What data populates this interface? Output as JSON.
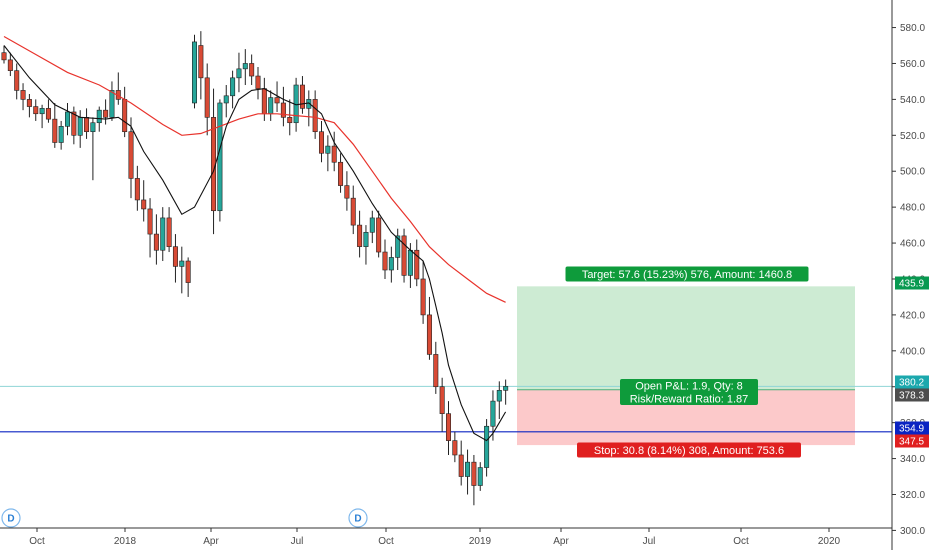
{
  "chart_data": {
    "type": "candlestick",
    "y_axis": {
      "range": [
        298,
        592
      ],
      "ticks": [
        "580.0",
        "560.0",
        "540.0",
        "520.0",
        "500.0",
        "480.0",
        "460.0",
        "440.0",
        "420.0",
        "400.0",
        "380.0",
        "360.0",
        "340.0",
        "320.0",
        "300.0"
      ]
    },
    "x_axis": {
      "ticks": [
        "Oct",
        "2018",
        "Apr",
        "Jul",
        "Oct",
        "2019",
        "Apr",
        "Jul",
        "Oct",
        "2020"
      ]
    },
    "candles": [
      [
        566,
        570,
        560,
        562
      ],
      [
        562,
        566,
        553,
        556
      ],
      [
        556,
        560,
        540,
        545
      ],
      [
        545,
        549,
        534,
        540
      ],
      [
        540,
        543,
        530,
        536
      ],
      [
        536,
        540,
        528,
        532
      ],
      [
        532,
        537,
        524,
        535
      ],
      [
        535,
        540,
        527,
        529
      ],
      [
        529,
        538,
        513,
        516
      ],
      [
        516,
        528,
        512,
        525
      ],
      [
        525,
        538,
        520,
        533
      ],
      [
        533,
        536,
        515,
        520
      ],
      [
        520,
        534,
        513,
        530
      ],
      [
        530,
        535,
        518,
        522
      ],
      [
        522,
        530,
        495,
        527
      ],
      [
        527,
        536,
        522,
        534
      ],
      [
        534,
        540,
        526,
        530
      ],
      [
        530,
        550,
        528,
        545
      ],
      [
        545,
        555,
        537,
        540
      ],
      [
        540,
        547,
        519,
        522
      ],
      [
        522,
        530,
        485,
        496
      ],
      [
        496,
        503,
        478,
        484
      ],
      [
        484,
        495,
        472,
        479
      ],
      [
        479,
        485,
        452,
        465
      ],
      [
        465,
        476,
        448,
        456
      ],
      [
        456,
        480,
        450,
        474
      ],
      [
        474,
        480,
        455,
        458
      ],
      [
        458,
        465,
        438,
        447
      ],
      [
        447,
        458,
        432,
        450
      ],
      [
        450,
        452,
        430,
        438
      ],
      [
        538,
        576,
        535,
        572
      ],
      [
        570,
        578,
        540,
        552
      ],
      [
        552,
        560,
        520,
        530
      ],
      [
        530,
        546,
        465,
        478
      ],
      [
        478,
        540,
        472,
        538
      ],
      [
        538,
        548,
        530,
        542
      ],
      [
        542,
        556,
        535,
        552
      ],
      [
        552,
        566,
        544,
        557
      ],
      [
        557,
        568,
        548,
        560
      ],
      [
        560,
        565,
        548,
        553
      ],
      [
        553,
        558,
        540,
        546
      ],
      [
        546,
        552,
        528,
        532
      ],
      [
        532,
        545,
        528,
        541
      ],
      [
        541,
        550,
        533,
        538
      ],
      [
        538,
        547,
        525,
        530
      ],
      [
        530,
        540,
        520,
        527
      ],
      [
        527,
        552,
        522,
        548
      ],
      [
        548,
        553,
        532,
        535
      ],
      [
        535,
        545,
        525,
        540
      ],
      [
        540,
        545,
        518,
        522
      ],
      [
        522,
        528,
        505,
        510
      ],
      [
        510,
        520,
        500,
        514
      ],
      [
        514,
        522,
        500,
        505
      ],
      [
        505,
        510,
        488,
        492
      ],
      [
        492,
        500,
        478,
        485
      ],
      [
        485,
        492,
        465,
        470
      ],
      [
        470,
        478,
        452,
        458
      ],
      [
        458,
        470,
        448,
        466
      ],
      [
        466,
        478,
        460,
        474
      ],
      [
        474,
        478,
        452,
        455
      ],
      [
        455,
        462,
        440,
        445
      ],
      [
        445,
        458,
        438,
        452
      ],
      [
        452,
        468,
        445,
        464
      ],
      [
        464,
        468,
        438,
        442
      ],
      [
        442,
        460,
        435,
        456
      ],
      [
        456,
        462,
        436,
        440
      ],
      [
        440,
        450,
        415,
        420
      ],
      [
        420,
        430,
        395,
        398
      ],
      [
        398,
        405,
        376,
        380
      ],
      [
        380,
        385,
        355,
        365
      ],
      [
        365,
        372,
        342,
        350
      ],
      [
        350,
        355,
        338,
        342
      ],
      [
        342,
        350,
        325,
        330
      ],
      [
        330,
        345,
        320,
        338
      ],
      [
        338,
        342,
        314,
        325
      ],
      [
        325,
        338,
        322,
        335
      ],
      [
        335,
        362,
        330,
        358
      ],
      [
        358,
        378,
        350,
        372
      ],
      [
        372,
        383,
        362,
        378
      ],
      [
        378,
        384,
        370,
        380.2
      ]
    ],
    "sma_short": [
      [
        0,
        570
      ],
      [
        4,
        552
      ],
      [
        8,
        537
      ],
      [
        12,
        530
      ],
      [
        16,
        529
      ],
      [
        18,
        530
      ],
      [
        20,
        525
      ],
      [
        22,
        511
      ],
      [
        25,
        495
      ],
      [
        28,
        476
      ],
      [
        30,
        480
      ],
      [
        33,
        500
      ],
      [
        35,
        525
      ],
      [
        37,
        540
      ],
      [
        39,
        545
      ],
      [
        41,
        546
      ],
      [
        44,
        540
      ],
      [
        46,
        537
      ],
      [
        48,
        538
      ],
      [
        50,
        532
      ],
      [
        52,
        516
      ],
      [
        55,
        500
      ],
      [
        58,
        482
      ],
      [
        61,
        466
      ],
      [
        64,
        456
      ],
      [
        66,
        450
      ],
      [
        67,
        440
      ],
      [
        68,
        425
      ],
      [
        69,
        410
      ],
      [
        70,
        392
      ],
      [
        72,
        370
      ],
      [
        74,
        354
      ],
      [
        76,
        350
      ],
      [
        77,
        354
      ],
      [
        78,
        360
      ],
      [
        79,
        366
      ]
    ],
    "sma_long": [
      [
        0,
        575
      ],
      [
        5,
        565
      ],
      [
        10,
        555
      ],
      [
        15,
        548
      ],
      [
        20,
        538
      ],
      [
        25,
        526
      ],
      [
        28,
        520
      ],
      [
        31,
        521
      ],
      [
        34,
        525
      ],
      [
        37,
        529
      ],
      [
        40,
        532
      ],
      [
        43,
        532
      ],
      [
        46,
        531
      ],
      [
        49,
        530
      ],
      [
        52,
        527
      ],
      [
        55,
        515
      ],
      [
        58,
        500
      ],
      [
        61,
        485
      ],
      [
        64,
        472
      ],
      [
        67,
        458
      ],
      [
        70,
        448
      ],
      [
        73,
        440
      ],
      [
        76,
        432
      ],
      [
        79,
        427
      ]
    ],
    "position": {
      "entry": 378.3,
      "target": 435.9,
      "stop": 347.5,
      "target_label": "Target: 57.6 (15.23%) 576, Amount: 1460.8",
      "stop_label": "Stop: 30.8 (8.14%) 308, Amount: 753.6",
      "pnl_label": "Open P&L: 1.9, Qty: 8",
      "rr_label": "Risk/Reward Ratio: 1.87"
    },
    "price_labels": [
      {
        "text": "435.9",
        "value": 435.9,
        "color": "#089950"
      },
      {
        "text": "380.2",
        "value": 380.2,
        "color": "#1ba8ad"
      },
      {
        "text": "378.3",
        "value": 378.3,
        "color": "#4d4d4d"
      },
      {
        "text": "354.9",
        "value": 354.9,
        "color": "#0b24c2"
      },
      {
        "text": "347.5",
        "value": 347.5,
        "color": "#e01f1f"
      }
    ],
    "horizontal_line": 354.9,
    "last_price_line": 380.2,
    "dividend_marker": "D",
    "colors": {
      "up": "#26a69a",
      "down": "#d84a35",
      "sma_short": "#111111",
      "sma_long": "#e8332c",
      "profit_fill": "#cdebd3",
      "loss_fill": "#fcc9ca",
      "hline": "#0b24c2",
      "target_badge": "#0e9b3b",
      "stop_badge": "#e01f1f"
    }
  }
}
